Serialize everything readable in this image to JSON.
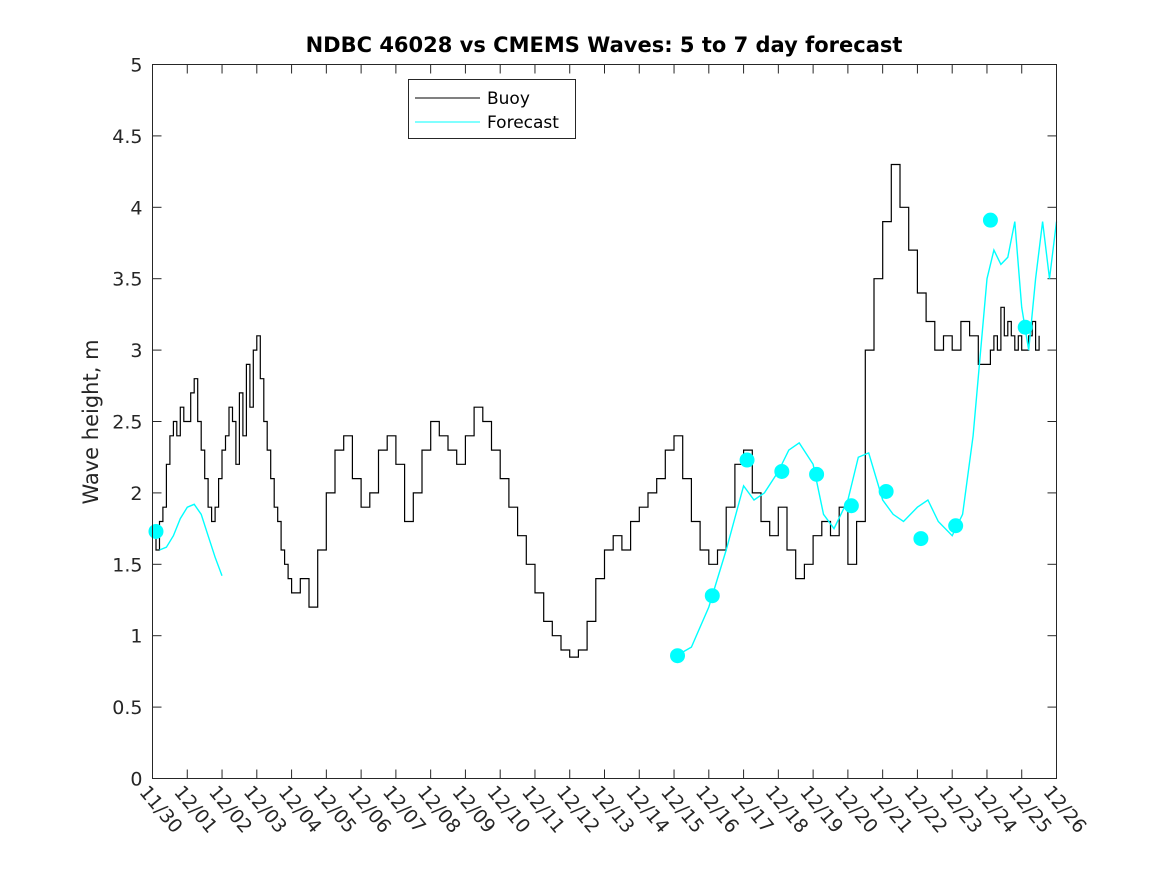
{
  "chart_data": {
    "type": "line",
    "title": "NDBC 46028 vs CMEMS Waves: 5 to 7 day forecast",
    "xlabel": "",
    "ylabel": "Wave height, m",
    "xlim": [
      0,
      26
    ],
    "ylim": [
      0,
      5
    ],
    "x_ticks": [
      "11/30",
      "12/01",
      "12/02",
      "12/03",
      "12/04",
      "12/05",
      "12/06",
      "12/07",
      "12/08",
      "12/09",
      "12/10",
      "12/11",
      "12/12",
      "12/13",
      "12/14",
      "12/15",
      "12/16",
      "12/17",
      "12/18",
      "12/19",
      "12/20",
      "12/21",
      "12/22",
      "12/23",
      "12/24",
      "12/25",
      "12/26"
    ],
    "y_ticks": [
      "0",
      "0.5",
      "1",
      "1.5",
      "2",
      "2.5",
      "3",
      "3.5",
      "4",
      "4.5",
      "5"
    ],
    "y_tick_values": [
      0,
      0.5,
      1,
      1.5,
      2,
      2.5,
      3,
      3.5,
      4,
      4.5,
      5
    ],
    "legend": {
      "position": "top-left",
      "entries": [
        "Buoy",
        "Forecast"
      ]
    },
    "colors": {
      "buoy": "#000000",
      "forecast": "#00ffff",
      "axis": "#262626"
    },
    "series": [
      {
        "name": "Buoy",
        "x": [
          0,
          0.1,
          0.2,
          0.3,
          0.4,
          0.5,
          0.6,
          0.7,
          0.8,
          0.9,
          1,
          1.1,
          1.2,
          1.3,
          1.4,
          1.5,
          1.6,
          1.7,
          1.8,
          1.9,
          2,
          2.1,
          2.2,
          2.3,
          2.4,
          2.5,
          2.6,
          2.7,
          2.8,
          2.9,
          3,
          3.1,
          3.2,
          3.3,
          3.4,
          3.5,
          3.6,
          3.7,
          3.8,
          3.9,
          4,
          4.25,
          4.5,
          4.75,
          5,
          5.25,
          5.5,
          5.75,
          6,
          6.25,
          6.5,
          6.75,
          7,
          7.25,
          7.5,
          7.75,
          8,
          8.25,
          8.5,
          8.75,
          9,
          9.25,
          9.5,
          9.75,
          10,
          10.25,
          10.5,
          10.75,
          11,
          11.25,
          11.5,
          11.75,
          12,
          12.25,
          12.5,
          12.75,
          13,
          13.25,
          13.5,
          13.75,
          14,
          14.25,
          14.5,
          14.75,
          15,
          15.25,
          15.5,
          15.75,
          16,
          16.25,
          16.5,
          16.75,
          17,
          17.25,
          17.5,
          17.75,
          18,
          18.25,
          18.5,
          18.75,
          19,
          19.25,
          19.5,
          19.75,
          20,
          20.25,
          20.5,
          20.75,
          21,
          21.25,
          21.5,
          21.75,
          22,
          22.25,
          22.5,
          22.75,
          23,
          23.25,
          23.5,
          23.75,
          24,
          24.1,
          24.2,
          24.3,
          24.4,
          24.5,
          24.6,
          24.7,
          24.8,
          24.9,
          25,
          25.1,
          25.2,
          25.3,
          25.4,
          25.5
        ],
        "values": [
          1.7,
          1.6,
          1.8,
          1.9,
          2.2,
          2.4,
          2.5,
          2.4,
          2.6,
          2.5,
          2.5,
          2.7,
          2.8,
          2.5,
          2.3,
          2.1,
          1.9,
          1.8,
          1.9,
          2.1,
          2.3,
          2.4,
          2.6,
          2.5,
          2.2,
          2.7,
          2.4,
          2.9,
          2.6,
          3.0,
          3.1,
          2.8,
          2.5,
          2.3,
          2.1,
          1.9,
          1.8,
          1.6,
          1.5,
          1.4,
          1.3,
          1.4,
          1.2,
          1.6,
          2.0,
          2.3,
          2.4,
          2.1,
          1.9,
          2.0,
          2.3,
          2.4,
          2.2,
          1.8,
          2.0,
          2.3,
          2.5,
          2.4,
          2.3,
          2.2,
          2.4,
          2.6,
          2.5,
          2.3,
          2.1,
          1.9,
          1.7,
          1.5,
          1.3,
          1.1,
          1.0,
          0.9,
          0.85,
          0.9,
          1.1,
          1.4,
          1.6,
          1.7,
          1.6,
          1.8,
          1.9,
          2.0,
          2.1,
          2.3,
          2.4,
          2.1,
          1.8,
          1.6,
          1.5,
          1.6,
          1.9,
          2.2,
          2.3,
          2.0,
          1.8,
          1.7,
          1.9,
          1.6,
          1.4,
          1.5,
          1.7,
          1.8,
          1.7,
          1.9,
          1.5,
          1.8,
          3.0,
          3.5,
          3.9,
          4.3,
          4.0,
          3.7,
          3.4,
          3.2,
          3.0,
          3.1,
          3.0,
          3.2,
          3.1,
          2.9,
          2.9,
          3.0,
          3.1,
          3.0,
          3.3,
          3.1,
          3.2,
          3.1,
          3.0,
          3.1,
          3.0,
          3.0,
          3.1,
          3.2,
          3.0,
          3.1
        ]
      },
      {
        "name": "Forecast",
        "segments": [
          {
            "x": [
              0.2,
              0.4,
              0.6,
              0.8,
              1.0,
              1.2,
              1.4,
              1.6,
              1.8,
              2.0
            ],
            "values": [
              1.6,
              1.62,
              1.7,
              1.82,
              1.9,
              1.92,
              1.85,
              1.7,
              1.55,
              1.42
            ]
          },
          {
            "x": [
              15.0,
              15.5,
              16.0,
              16.5,
              17.0,
              17.3,
              17.6,
              18.0,
              18.3,
              18.6,
              19.0,
              19.3,
              19.6,
              20.0,
              20.3,
              20.6,
              21.0,
              21.3,
              21.6,
              22.0,
              22.3,
              22.6,
              23.0,
              23.3,
              23.6,
              24.0,
              24.2,
              24.4,
              24.6,
              24.8,
              25.0,
              25.2,
              25.4,
              25.6,
              25.8,
              26.0
            ],
            "values": [
              0.85,
              0.92,
              1.2,
              1.6,
              2.05,
              1.95,
              2.0,
              2.15,
              2.3,
              2.35,
              2.2,
              1.85,
              1.75,
              1.95,
              2.25,
              2.28,
              1.95,
              1.85,
              1.8,
              1.9,
              1.95,
              1.8,
              1.7,
              1.85,
              2.4,
              3.5,
              3.7,
              3.6,
              3.65,
              3.9,
              3.3,
              3.0,
              3.5,
              3.9,
              3.5,
              3.9
            ]
          }
        ],
        "markers": {
          "x": [
            0.1,
            15.1,
            16.1,
            17.1,
            18.1,
            19.1,
            20.1,
            21.1,
            22.1,
            23.1,
            24.1,
            25.1
          ],
          "values": [
            1.73,
            0.86,
            1.28,
            2.23,
            2.15,
            2.13,
            1.91,
            2.01,
            1.68,
            1.77,
            3.91,
            3.16
          ]
        }
      }
    ]
  }
}
